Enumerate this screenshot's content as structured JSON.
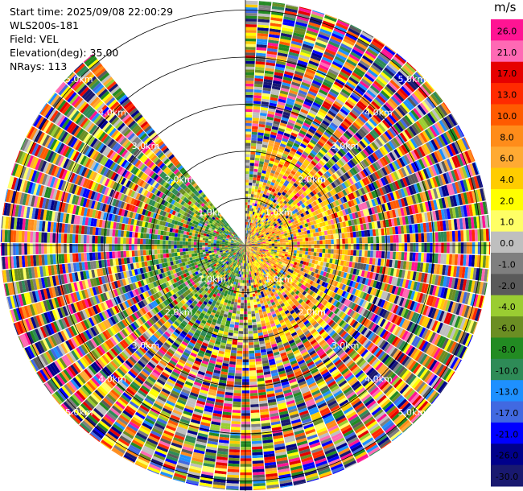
{
  "header": {
    "start_time": "Start time: 2025/09/08 22:00:29",
    "instrument": "WLS200s-181",
    "field": "Field: VEL",
    "elevation": "Elevation(deg): 35.00",
    "nrays": "NRays: 113"
  },
  "chart_data": {
    "type": "heatmap",
    "projection": "polar-ppi",
    "field": "VEL",
    "units": "m/s",
    "range_rings_km": [
      1.0,
      2.0,
      3.0,
      4.0,
      5.0
    ],
    "ring_labels": [
      "1.0km",
      "2.0km",
      "3.0km",
      "4.0km",
      "5.0km"
    ],
    "max_range_km": 5.2,
    "missing_sector_deg": [
      322,
      360
    ],
    "colorbar": {
      "title": "m/s",
      "ticks": [
        "26.0",
        "21.0",
        "17.0",
        "13.0",
        "10.0",
        "8.0",
        "6.0",
        "4.0",
        "2.0",
        "1.0",
        "0.0",
        "-1.0",
        "-2.0",
        "-4.0",
        "-6.0",
        "-8.0",
        "-10.0",
        "-13.0",
        "-17.0",
        "-21.0",
        "-26.0",
        "-30.0"
      ],
      "colors": [
        "#ff1493",
        "#ff69b4",
        "#e60000",
        "#ff2a00",
        "#ff5a00",
        "#ff8c1a",
        "#ffaa33",
        "#ffcc00",
        "#ffff00",
        "#ffff66",
        "#bfbfbf",
        "#7f7f7f",
        "#5a5a5a",
        "#9acd32",
        "#6b8e23",
        "#228b22",
        "#2e8b57",
        "#1e90ff",
        "#4169e1",
        "#0000ff",
        "#00008b",
        "#191970"
      ]
    }
  }
}
